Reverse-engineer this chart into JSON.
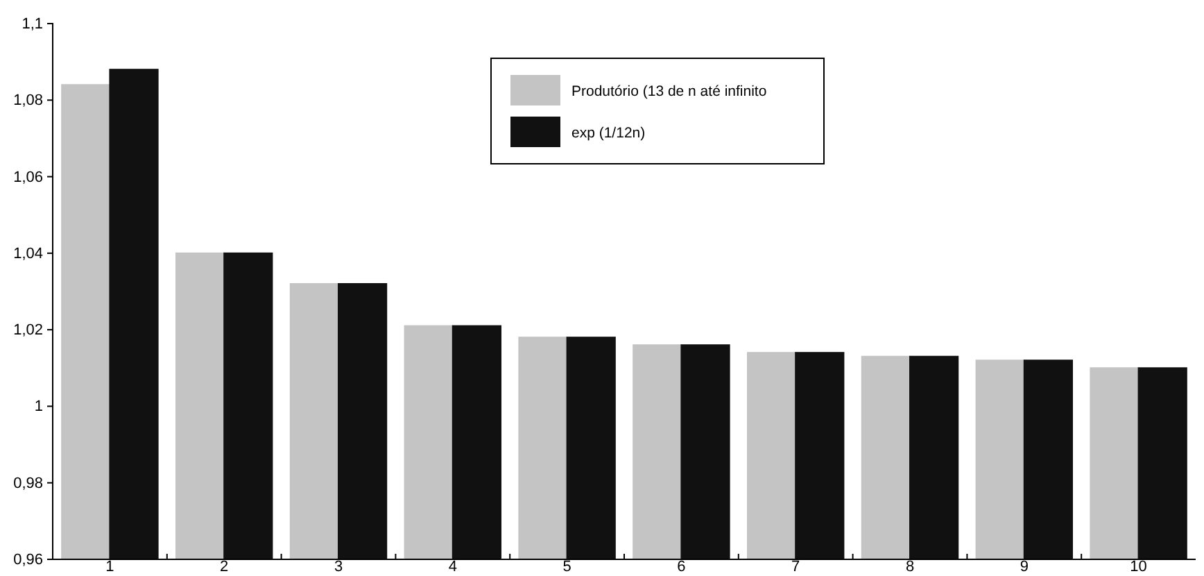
{
  "chart_data": {
    "type": "bar",
    "categories": [
      "1",
      "2",
      "3",
      "4",
      "5",
      "6",
      "7",
      "8",
      "9",
      "10"
    ],
    "series": [
      {
        "name": "Produtório (13 de n até infinito",
        "color": "#c4c4c4",
        "values": [
          1.084,
          1.04,
          1.032,
          1.021,
          1.018,
          1.016,
          1.014,
          1.013,
          1.012,
          1.01
        ]
      },
      {
        "name": "exp (1/12n)",
        "color": "#111111",
        "values": [
          1.088,
          1.04,
          1.032,
          1.021,
          1.018,
          1.016,
          1.014,
          1.013,
          1.012,
          1.01
        ]
      }
    ],
    "ylim": [
      0.96,
      1.1
    ],
    "yticks": [
      {
        "value": 0.96,
        "label": "0,96"
      },
      {
        "value": 0.98,
        "label": "0,98"
      },
      {
        "value": 1,
        "label": "1"
      },
      {
        "value": 1.02,
        "label": "1,02"
      },
      {
        "value": 1.04,
        "label": "1,04"
      },
      {
        "value": 1.06,
        "label": "1,06"
      },
      {
        "value": 1.08,
        "label": "1,08"
      },
      {
        "value": 1.1,
        "label": "1,1"
      }
    ],
    "grid": false,
    "legend": "top"
  }
}
